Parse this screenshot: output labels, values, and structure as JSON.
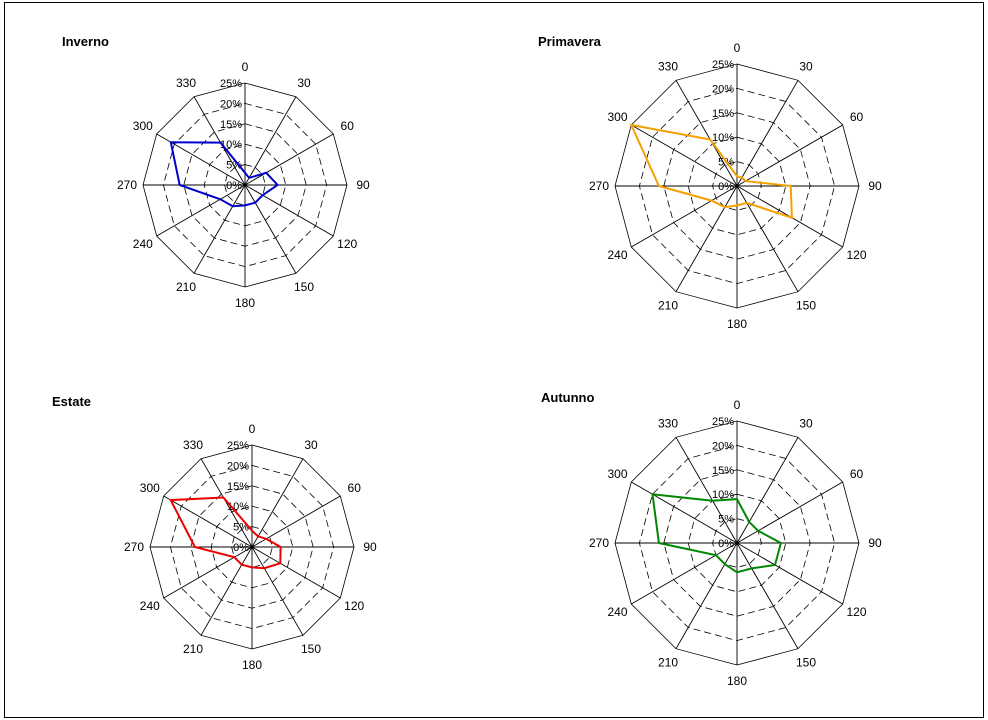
{
  "chart_data": [
    {
      "type": "radar",
      "title": "Inverno",
      "color": "#0000cc",
      "directions": [
        "0",
        "30",
        "60",
        "90",
        "120",
        "150",
        "180",
        "210",
        "240",
        "270",
        "300",
        "330"
      ],
      "rings": [
        "0%",
        "5%",
        "10%",
        "15%",
        "20%",
        "25%"
      ],
      "rmax": 25,
      "values": [
        3,
        2,
        6,
        8,
        5,
        5,
        5,
        6,
        7,
        16,
        21,
        12
      ]
    },
    {
      "type": "radar",
      "title": "Primavera",
      "color": "#f5a000",
      "directions": [
        "0",
        "30",
        "60",
        "90",
        "120",
        "150",
        "180",
        "210",
        "240",
        "270",
        "300",
        "330"
      ],
      "rings": [
        "0%",
        "5%",
        "10%",
        "15%",
        "20%",
        "25%"
      ],
      "rmax": 25,
      "values": [
        2,
        2,
        2,
        11,
        13,
        4,
        4,
        5,
        6,
        16,
        25,
        11
      ]
    },
    {
      "type": "radar",
      "title": "Estate",
      "color": "#ee0000",
      "directions": [
        "0",
        "30",
        "60",
        "90",
        "120",
        "150",
        "180",
        "210",
        "240",
        "270",
        "300",
        "330"
      ],
      "rings": [
        "0%",
        "5%",
        "10%",
        "15%",
        "20%",
        "25%"
      ],
      "rmax": 25,
      "values": [
        4,
        3,
        4,
        7,
        8,
        6,
        5,
        5,
        5,
        14,
        23,
        14
      ]
    },
    {
      "type": "radar",
      "title": "Autunno",
      "color": "#008800",
      "directions": [
        "0",
        "30",
        "60",
        "90",
        "120",
        "150",
        "180",
        "210",
        "240",
        "270",
        "300",
        "330"
      ],
      "rings": [
        "0%",
        "5%",
        "10%",
        "15%",
        "20%",
        "25%"
      ],
      "rmax": 25,
      "values": [
        9,
        5,
        5,
        9,
        9,
        6,
        6,
        5,
        5,
        16,
        20,
        10
      ]
    }
  ]
}
